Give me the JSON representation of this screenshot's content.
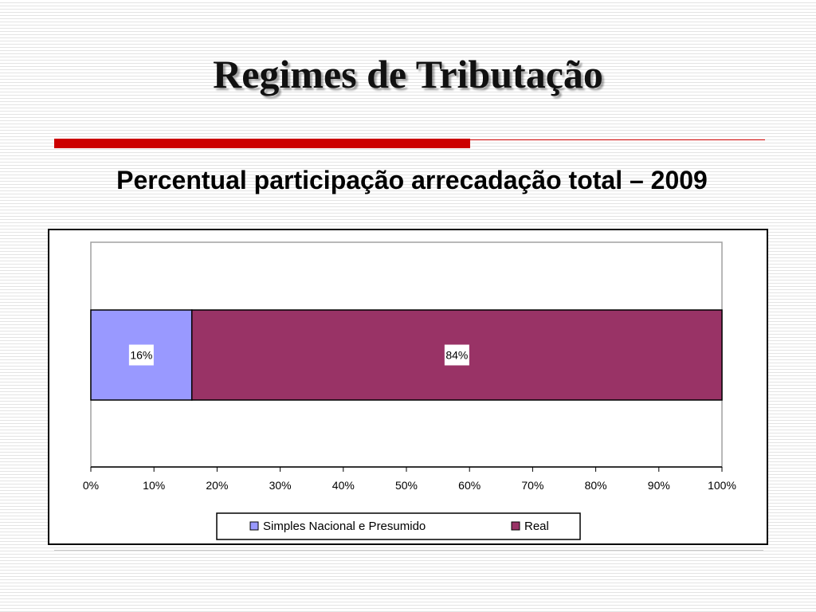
{
  "slide": {
    "title": "Regimes de Tributação",
    "subtitle": "Percentual participação arrecadação total – 2009"
  },
  "colors": {
    "accent_red": "#cc0000",
    "series_1": "#9999ff",
    "series_2": "#993366",
    "frame": "#000000"
  },
  "chart_data": {
    "type": "bar",
    "orientation": "horizontal",
    "stacked": true,
    "categories": [
      ""
    ],
    "series": [
      {
        "name": "Simples Nacional e Presumido",
        "values": [
          16
        ],
        "label": "16%",
        "color": "#9999ff"
      },
      {
        "name": "Real",
        "values": [
          84
        ],
        "label": "84%",
        "color": "#993366"
      }
    ],
    "xlim": [
      0,
      100
    ],
    "x_ticks": [
      0,
      10,
      20,
      30,
      40,
      50,
      60,
      70,
      80,
      90,
      100
    ],
    "x_tick_labels": [
      "0%",
      "10%",
      "20%",
      "30%",
      "40%",
      "50%",
      "60%",
      "70%",
      "80%",
      "90%",
      "100%"
    ],
    "title": "",
    "xlabel": "",
    "ylabel": "",
    "grid": false,
    "legend": "bottom"
  }
}
